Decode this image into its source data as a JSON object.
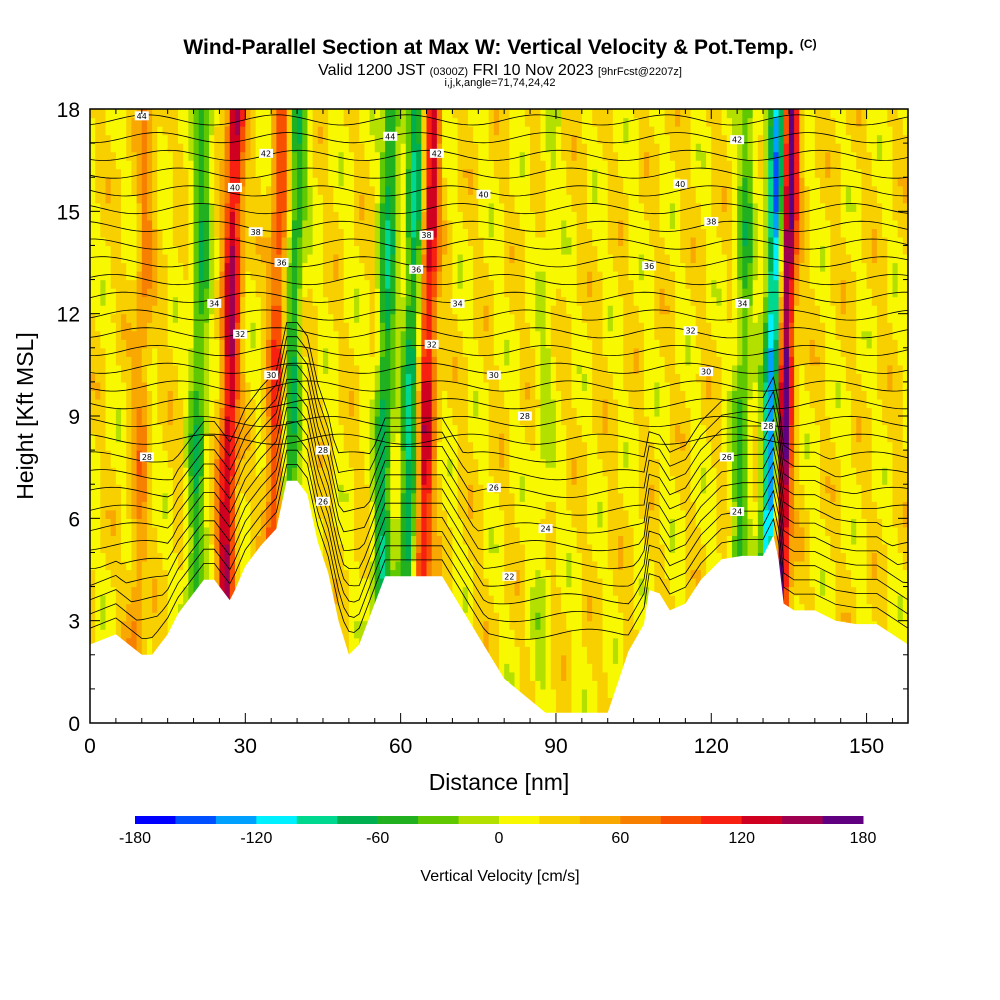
{
  "title": "Wind-Parallel Section at Max W: Vertical Velocity & Pot.Temp.",
  "title_mark": "(C)",
  "subtitle": {
    "valid": "Valid 1200 JST",
    "utc": "(0300Z)",
    "date": "FRI 10 Nov 2023",
    "fcst": "[9hrFcst@2207z]"
  },
  "indices": "i,j,k,angle=71,74,24,42",
  "chart_data": {
    "type": "heatmap",
    "xlabel": "Distance [nm]",
    "ylabel": "Height [Kft MSL]",
    "xlim": [
      0,
      158
    ],
    "ylim": [
      0,
      18
    ],
    "x_ticks": [
      0,
      30,
      60,
      90,
      120,
      150
    ],
    "y_ticks": [
      0,
      3,
      6,
      9,
      12,
      15,
      18
    ],
    "terrain": {
      "x": [
        0,
        5,
        10,
        12,
        15,
        17,
        20,
        22,
        24,
        26,
        27,
        28,
        30,
        33,
        36,
        38,
        40,
        42,
        44,
        46,
        48,
        50,
        52,
        55,
        57,
        60,
        63,
        66,
        68,
        70,
        74,
        78,
        80,
        84,
        88,
        92,
        96,
        100,
        102,
        104,
        107,
        108,
        110,
        112,
        115,
        118,
        122,
        126,
        130,
        131,
        132,
        133,
        134,
        136,
        140,
        144,
        148,
        152,
        156,
        158
      ],
      "height": [
        2.3,
        2.6,
        2.0,
        2.0,
        2.6,
        3.2,
        3.8,
        4.2,
        4.2,
        3.8,
        3.6,
        3.9,
        4.6,
        5.2,
        5.7,
        7.1,
        7.1,
        6.7,
        5.3,
        4.4,
        3.0,
        2.0,
        2.3,
        3.5,
        4.3,
        4.3,
        4.3,
        4.3,
        4.3,
        3.8,
        2.8,
        1.8,
        1.3,
        0.8,
        0.3,
        0.3,
        0.3,
        0.3,
        1.2,
        2.1,
        2.9,
        3.9,
        3.8,
        3.3,
        3.5,
        4.2,
        4.8,
        4.9,
        4.9,
        5.2,
        5.5,
        4.8,
        3.5,
        3.3,
        3.3,
        3.0,
        2.9,
        2.9,
        2.5,
        2.3
      ]
    },
    "colorbar": {
      "label": "Vertical Velocity [cm/s]",
      "min": -180,
      "max": 180,
      "step": 20,
      "tick_labels": [
        "-180",
        "-120",
        "-60",
        "0",
        "60",
        "120",
        "180"
      ],
      "colors": [
        "#0000ff",
        "#0050ff",
        "#00a0ff",
        "#00f0ff",
        "#00d890",
        "#00b050",
        "#20b020",
        "#60c800",
        "#b4e000",
        "#f8f800",
        "#f8d000",
        "#f8a800",
        "#f88000",
        "#f85000",
        "#f82010",
        "#d00020",
        "#a00050",
        "#600080"
      ]
    },
    "w_features": [
      {
        "x": 27,
        "w": 120
      },
      {
        "x": 21,
        "w": -70
      },
      {
        "x": 39,
        "w": -80
      },
      {
        "x": 36,
        "w": 80
      },
      {
        "x": 57,
        "w": -90
      },
      {
        "x": 65,
        "w": 110
      },
      {
        "x": 62,
        "w": -100
      },
      {
        "x": 132,
        "w": -180
      },
      {
        "x": 134,
        "w": 180
      },
      {
        "x": 126,
        "w": -60
      },
      {
        "x": 88,
        "w": -20
      },
      {
        "x": 10,
        "w": 40
      }
    ],
    "theta_labels": [
      {
        "x": 10,
        "height": 17.8,
        "text": "44"
      },
      {
        "x": 34,
        "height": 16.7,
        "text": "42"
      },
      {
        "x": 28,
        "height": 15.7,
        "text": "40"
      },
      {
        "x": 32,
        "height": 14.4,
        "text": "38"
      },
      {
        "x": 37,
        "height": 13.5,
        "text": "36"
      },
      {
        "x": 24,
        "height": 12.3,
        "text": "34"
      },
      {
        "x": 29,
        "height": 11.4,
        "text": "32"
      },
      {
        "x": 35,
        "height": 10.2,
        "text": "30"
      },
      {
        "x": 45,
        "height": 8.0,
        "text": "28"
      },
      {
        "x": 45,
        "height": 6.5,
        "text": "26"
      },
      {
        "x": 11,
        "height": 7.8,
        "text": "28"
      },
      {
        "x": 58,
        "height": 17.2,
        "text": "44"
      },
      {
        "x": 67,
        "height": 16.7,
        "text": "42"
      },
      {
        "x": 76,
        "height": 15.5,
        "text": "40"
      },
      {
        "x": 65,
        "height": 14.3,
        "text": "38"
      },
      {
        "x": 63,
        "height": 13.3,
        "text": "36"
      },
      {
        "x": 71,
        "height": 12.3,
        "text": "34"
      },
      {
        "x": 66,
        "height": 11.1,
        "text": "32"
      },
      {
        "x": 78,
        "height": 10.2,
        "text": "30"
      },
      {
        "x": 84,
        "height": 9.0,
        "text": "28"
      },
      {
        "x": 78,
        "height": 6.9,
        "text": "26"
      },
      {
        "x": 88,
        "height": 5.7,
        "text": "24"
      },
      {
        "x": 81,
        "height": 4.3,
        "text": "22"
      },
      {
        "x": 125,
        "height": 17.1,
        "text": "42"
      },
      {
        "x": 114,
        "height": 15.8,
        "text": "40"
      },
      {
        "x": 120,
        "height": 14.7,
        "text": "38"
      },
      {
        "x": 108,
        "height": 13.4,
        "text": "36"
      },
      {
        "x": 126,
        "height": 12.3,
        "text": "34"
      },
      {
        "x": 116,
        "height": 11.5,
        "text": "32"
      },
      {
        "x": 119,
        "height": 10.3,
        "text": "30"
      },
      {
        "x": 131,
        "height": 8.7,
        "text": "28"
      },
      {
        "x": 123,
        "height": 7.8,
        "text": "26"
      },
      {
        "x": 125,
        "height": 6.2,
        "text": "24"
      }
    ]
  }
}
